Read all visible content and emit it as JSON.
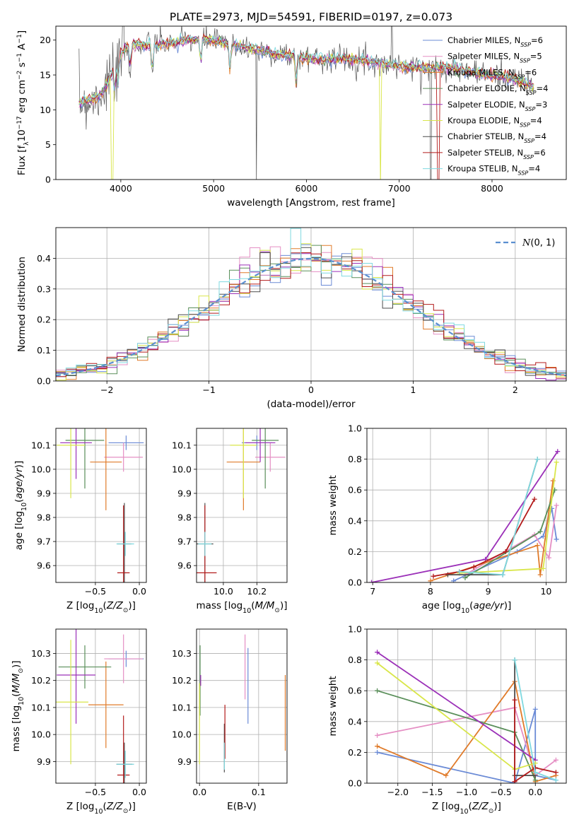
{
  "figure_title": "PLATE=2973, MJD=54591, FIBERID=0197, z=0.073",
  "model_colors": {
    "Chabrier MILES": "#6b8bd6",
    "Salpeter MILES": "#e58fc4",
    "Kroupa MILES": "#e07b2a",
    "Chabrier ELODIE": "#5a8f5a",
    "Salpeter ELODIE": "#9b30b8",
    "Kroupa ELODIE": "#d9e64a",
    "Chabrier STELIB": "#4d4d4d",
    "Salpeter STELIB": "#b31b1b",
    "Kroupa STELIB": "#7fd9e0"
  },
  "chart_data": [
    {
      "id": "spectrum",
      "type": "line",
      "title": "",
      "xlabel": "wavelength [Angstrom, rest frame]",
      "ylabel": "Flux [f_λ 10^-17 erg cm^-2 s^-1 A^-1]",
      "xlim": [
        3300,
        8800
      ],
      "ylim": [
        0,
        22
      ],
      "xticks": [
        4000,
        5000,
        6000,
        7000,
        8000
      ],
      "yticks": [
        0,
        5,
        10,
        15,
        20
      ],
      "legend": {
        "placement": "top-right",
        "entries": [
          {
            "name": "Chabrier MILES",
            "nssp": "6"
          },
          {
            "name": "Salpeter MILES",
            "nssp": "5"
          },
          {
            "name": "Kroupa MILES",
            "nssp": "6"
          },
          {
            "name": "Chabrier ELODIE",
            "nssp": "4"
          },
          {
            "name": "Salpeter ELODIE",
            "nssp": "3"
          },
          {
            "name": "Kroupa ELODIE",
            "nssp": "4"
          },
          {
            "name": "Chabrier STELIB",
            "nssp": "4"
          },
          {
            "name": "Salpeter STELIB",
            "nssp": "6"
          },
          {
            "name": "Kroupa STELIB",
            "nssp": "4"
          }
        ]
      },
      "continuum": {
        "x": [
          3550,
          3700,
          3800,
          3900,
          4000,
          4100,
          4300,
          4500,
          4700,
          4900,
          5100,
          5300,
          5600,
          5900,
          6200,
          6500,
          6700,
          6900,
          7100,
          7300,
          7500,
          7700,
          7900,
          8100,
          8300,
          8450
        ],
        "y": [
          11,
          11.5,
          12.5,
          15,
          18,
          19.5,
          19.2,
          19.5,
          20,
          20.2,
          19.6,
          19,
          18.2,
          17.6,
          17.3,
          17.3,
          16.9,
          16.4,
          16.1,
          16.0,
          16.2,
          15.6,
          15.1,
          14.8,
          14.2,
          13.2
        ]
      },
      "absorption_lines": [
        3934,
        3969,
        4102,
        4340,
        4861,
        5175,
        5890
      ]
    },
    {
      "id": "residuals",
      "type": "line",
      "title": "",
      "xlabel": "(data-model)/error",
      "ylabel": "Normed distribution",
      "xlim": [
        -2.5,
        2.5
      ],
      "ylim": [
        0,
        0.5
      ],
      "xticks": [
        -2,
        -1,
        0,
        1,
        2
      ],
      "yticks": [
        0.0,
        0.1,
        0.2,
        0.3,
        0.4
      ],
      "legend": {
        "placement": "top-right",
        "entries": [
          "N(0,1)"
        ]
      },
      "series_note": "",
      "reference_curve": "normal(0,1)"
    },
    {
      "id": "age-vs-z",
      "type": "scatter",
      "xlabel": "Z [log10(Z/Z⊙)]",
      "ylabel": "age  [log10(age/yr)]",
      "xlim": [
        -0.95,
        0.08
      ],
      "ylim": [
        9.53,
        10.17
      ],
      "xticks": [
        -0.5,
        0.0
      ],
      "yticks": [
        9.6,
        9.7,
        9.8,
        9.9,
        10.0,
        10.1
      ],
      "points": [
        {
          "model": "Chabrier MILES",
          "x": -0.15,
          "y": 10.11,
          "xerr": 0.2,
          "yerr": 0.03
        },
        {
          "model": "Salpeter MILES",
          "x": -0.18,
          "y": 10.05,
          "xerr": 0.22,
          "yerr": 0.06
        },
        {
          "model": "Kroupa MILES",
          "x": -0.38,
          "y": 10.03,
          "xerr": 0.18,
          "yerr": 0.2
        },
        {
          "model": "Chabrier ELODIE",
          "x": -0.62,
          "y": 10.12,
          "xerr": 0.22,
          "yerr": 0.2
        },
        {
          "model": "Salpeter ELODIE",
          "x": -0.72,
          "y": 10.11,
          "xerr": 0.18,
          "yerr": 0.15
        },
        {
          "model": "Kroupa ELODIE",
          "x": -0.78,
          "y": 10.1,
          "xerr": 0.16,
          "yerr": 0.22
        },
        {
          "model": "Chabrier STELIB",
          "x": -0.17,
          "y": 9.69,
          "xerr": 0.08,
          "yerr": 0.17
        },
        {
          "model": "Salpeter STELIB",
          "x": -0.18,
          "y": 9.57,
          "xerr": 0.07,
          "yerr": 0.28
        },
        {
          "model": "Kroupa STELIB",
          "x": -0.16,
          "y": 9.69,
          "xerr": 0.1,
          "yerr": 0.05
        }
      ]
    },
    {
      "id": "age-vs-mass",
      "type": "scatter",
      "xlabel": "mass [log10(M/M⊙)]",
      "ylabel": "",
      "xlim": [
        9.84,
        10.38
      ],
      "ylim": [
        9.53,
        10.17
      ],
      "xticks": [
        10.0,
        10.2
      ],
      "yticks": [
        9.6,
        9.7,
        9.8,
        9.9,
        10.0,
        10.1
      ],
      "points": [
        {
          "model": "Chabrier MILES",
          "x": 10.2,
          "y": 10.11,
          "xerr": 0.09,
          "yerr": 0.03
        },
        {
          "model": "Salpeter MILES",
          "x": 10.28,
          "y": 10.05,
          "xerr": 0.09,
          "yerr": 0.06
        },
        {
          "model": "Kroupa MILES",
          "x": 10.12,
          "y": 10.03,
          "xerr": 0.1,
          "yerr": 0.2
        },
        {
          "model": "Chabrier ELODIE",
          "x": 10.25,
          "y": 10.12,
          "xerr": 0.08,
          "yerr": 0.2
        },
        {
          "model": "Salpeter ELODIE",
          "x": 10.22,
          "y": 10.11,
          "xerr": 0.09,
          "yerr": 0.08
        },
        {
          "model": "Kroupa ELODIE",
          "x": 10.12,
          "y": 10.1,
          "xerr": 0.08,
          "yerr": 0.22
        },
        {
          "model": "Chabrier STELIB",
          "x": 9.89,
          "y": 9.69,
          "xerr": 0.05,
          "yerr": 0.17
        },
        {
          "model": "Salpeter STELIB",
          "x": 9.89,
          "y": 9.57,
          "xerr": 0.07,
          "yerr": 0.28
        },
        {
          "model": "Kroupa STELIB",
          "x": 9.89,
          "y": 9.69,
          "xerr": 0.04,
          "yerr": 0.05
        }
      ]
    },
    {
      "id": "weight-vs-age",
      "type": "line",
      "xlabel": "age  [log10(age/yr)]",
      "ylabel": "mass weight",
      "xlim": [
        6.9,
        10.35
      ],
      "ylim": [
        0,
        1.0
      ],
      "xticks": [
        7,
        8,
        9,
        10
      ],
      "yticks": [
        0.0,
        0.2,
        0.4,
        0.6,
        0.8,
        1.0
      ],
      "series": [
        {
          "model": "Chabrier MILES",
          "x": [
            8.4,
            9.5,
            9.95,
            10.1,
            10.18
          ],
          "y": [
            0.01,
            0.2,
            0.3,
            0.48,
            0.28
          ]
        },
        {
          "model": "Salpeter MILES",
          "x": [
            8.6,
            9.8,
            10.05,
            10.18
          ],
          "y": [
            0.05,
            0.31,
            0.16,
            0.5
          ]
        },
        {
          "model": "Kroupa MILES",
          "x": [
            8.0,
            9.85,
            9.9,
            10.12
          ],
          "y": [
            0.01,
            0.24,
            0.05,
            0.66
          ]
        },
        {
          "model": "Chabrier ELODIE",
          "x": [
            8.6,
            9.9,
            10.15
          ],
          "y": [
            0.03,
            0.33,
            0.6
          ]
        },
        {
          "model": "Salpeter ELODIE",
          "x": [
            6.98,
            8.95,
            10.2
          ],
          "y": [
            0.0,
            0.15,
            0.85
          ]
        },
        {
          "model": "Kroupa ELODIE",
          "x": [
            8.5,
            9.95,
            10.18
          ],
          "y": [
            0.06,
            0.09,
            0.78
          ]
        },
        {
          "model": "Chabrier STELIB",
          "x": [
            8.3,
            9.25,
            9.85
          ],
          "y": [
            0.05,
            0.05,
            0.8
          ]
        },
        {
          "model": "Salpeter STELIB",
          "x": [
            8.05,
            8.5,
            8.75,
            9.3,
            9.8
          ],
          "y": [
            0.04,
            0.07,
            0.1,
            0.2,
            0.54
          ]
        },
        {
          "model": "Kroupa STELIB",
          "x": [
            8.5,
            9.25,
            9.85
          ],
          "y": [
            0.07,
            0.05,
            0.8
          ]
        }
      ]
    },
    {
      "id": "mass-vs-z",
      "type": "scatter",
      "xlabel": "Z [log10(Z/Z⊙)]",
      "ylabel": "mass [log10(M/M⊙)]",
      "xlim": [
        -0.95,
        0.08
      ],
      "ylim": [
        9.82,
        10.39
      ],
      "xticks": [
        -0.5,
        0.0
      ],
      "yticks": [
        9.9,
        10.0,
        10.1,
        10.2,
        10.3
      ],
      "points": [
        {
          "model": "Chabrier MILES",
          "x": -0.15,
          "y": 10.28,
          "xerr": 0.2,
          "yerr": 0.03
        },
        {
          "model": "Salpeter MILES",
          "x": -0.18,
          "y": 10.28,
          "xerr": 0.22,
          "yerr": 0.09
        },
        {
          "model": "Kroupa MILES",
          "x": -0.38,
          "y": 10.11,
          "xerr": 0.2,
          "yerr": 0.16
        },
        {
          "model": "Chabrier ELODIE",
          "x": -0.62,
          "y": 10.25,
          "xerr": 0.3,
          "yerr": 0.08
        },
        {
          "model": "Salpeter ELODIE",
          "x": -0.72,
          "y": 10.22,
          "xerr": 0.22,
          "yerr": 0.18
        },
        {
          "model": "Kroupa ELODIE",
          "x": -0.78,
          "y": 10.12,
          "xerr": 0.2,
          "yerr": 0.23
        },
        {
          "model": "Chabrier STELIB",
          "x": -0.17,
          "y": 9.89,
          "xerr": 0.09,
          "yerr": 0.08
        },
        {
          "model": "Salpeter STELIB",
          "x": -0.18,
          "y": 9.85,
          "xerr": 0.07,
          "yerr": 0.22
        },
        {
          "model": "Kroupa STELIB",
          "x": -0.16,
          "y": 9.89,
          "xerr": 0.1,
          "yerr": 0.05
        }
      ]
    },
    {
      "id": "mass-vs-ebv",
      "type": "scatter",
      "xlabel": "E(B-V)",
      "ylabel": "",
      "xlim": [
        -0.005,
        0.148
      ],
      "ylim": [
        9.82,
        10.39
      ],
      "xticks": [
        0.0,
        0.1
      ],
      "yticks": [
        9.9,
        10.0,
        10.1,
        10.2,
        10.3
      ],
      "points": [
        {
          "model": "Chabrier MILES",
          "x": 0.082,
          "y": 10.18,
          "xerr": 0,
          "yerr": 0.14
        },
        {
          "model": "Salpeter MILES",
          "x": 0.077,
          "y": 10.25,
          "xerr": 0,
          "yerr": 0.12
        },
        {
          "model": "Kroupa MILES",
          "x": 0.145,
          "y": 10.08,
          "xerr": 0,
          "yerr": 0.14
        },
        {
          "model": "Chabrier ELODIE",
          "x": 0.001,
          "y": 10.2,
          "xerr": 0,
          "yerr": 0.13
        },
        {
          "model": "Salpeter ELODIE",
          "x": 0.002,
          "y": 10.2,
          "xerr": 0,
          "yerr": 0.02
        },
        {
          "model": "Kroupa ELODIE",
          "x": 0.0,
          "y": 10.04,
          "xerr": 0,
          "yerr": 0.15
        },
        {
          "model": "Chabrier STELIB",
          "x": 0.042,
          "y": 9.95,
          "xerr": 0,
          "yerr": 0.09
        },
        {
          "model": "Salpeter STELIB",
          "x": 0.043,
          "y": 10.01,
          "xerr": 0,
          "yerr": 0.1
        },
        {
          "model": "Kroupa STELIB",
          "x": 0.042,
          "y": 9.92,
          "xerr": 0,
          "yerr": 0.05
        }
      ]
    },
    {
      "id": "weight-vs-z",
      "type": "line",
      "xlabel": "Z [log10(Z/Z⊙)]",
      "ylabel": "mass weight",
      "xlim": [
        -2.45,
        0.45
      ],
      "ylim": [
        0,
        1.0
      ],
      "xticks": [
        -2.0,
        -1.5,
        -1.0,
        -0.5,
        0.0
      ],
      "yticks": [
        0.0,
        0.2,
        0.4,
        0.6,
        0.8,
        1.0
      ],
      "series": [
        {
          "model": "Chabrier MILES",
          "x": [
            -2.3,
            -0.3,
            0.0,
            0.0,
            0.3
          ],
          "y": [
            0.2,
            0.0,
            0.48,
            0.05,
            0.02
          ]
        },
        {
          "model": "Salpeter MILES",
          "x": [
            -2.3,
            -0.3,
            0.0,
            0.3
          ],
          "y": [
            0.31,
            0.49,
            0.05,
            0.15
          ]
        },
        {
          "model": "Kroupa MILES",
          "x": [
            -2.3,
            -1.3,
            -0.3,
            0.0,
            0.3
          ],
          "y": [
            0.24,
            0.05,
            0.66,
            0.01,
            0.05
          ]
        },
        {
          "model": "Chabrier ELODIE",
          "x": [
            -2.3,
            -0.3,
            0.0
          ],
          "y": [
            0.6,
            0.33,
            0.02
          ]
        },
        {
          "model": "Salpeter ELODIE",
          "x": [
            -2.3,
            0.0
          ],
          "y": [
            0.85,
            0.15
          ]
        },
        {
          "model": "Kroupa ELODIE",
          "x": [
            -2.3,
            -0.3,
            0.0
          ],
          "y": [
            0.78,
            0.09,
            0.13
          ]
        },
        {
          "model": "Chabrier STELIB",
          "x": [
            -0.3,
            -0.3,
            0.0
          ],
          "y": [
            0.8,
            0.05,
            0.05
          ]
        },
        {
          "model": "Salpeter STELIB",
          "x": [
            -0.3,
            -0.3,
            0.0,
            0.3
          ],
          "y": [
            0.54,
            0.01,
            0.1,
            0.07
          ]
        },
        {
          "model": "Kroupa STELIB",
          "x": [
            -0.3,
            0.0,
            0.3
          ],
          "y": [
            0.8,
            0.07,
            0.02
          ]
        }
      ]
    }
  ]
}
